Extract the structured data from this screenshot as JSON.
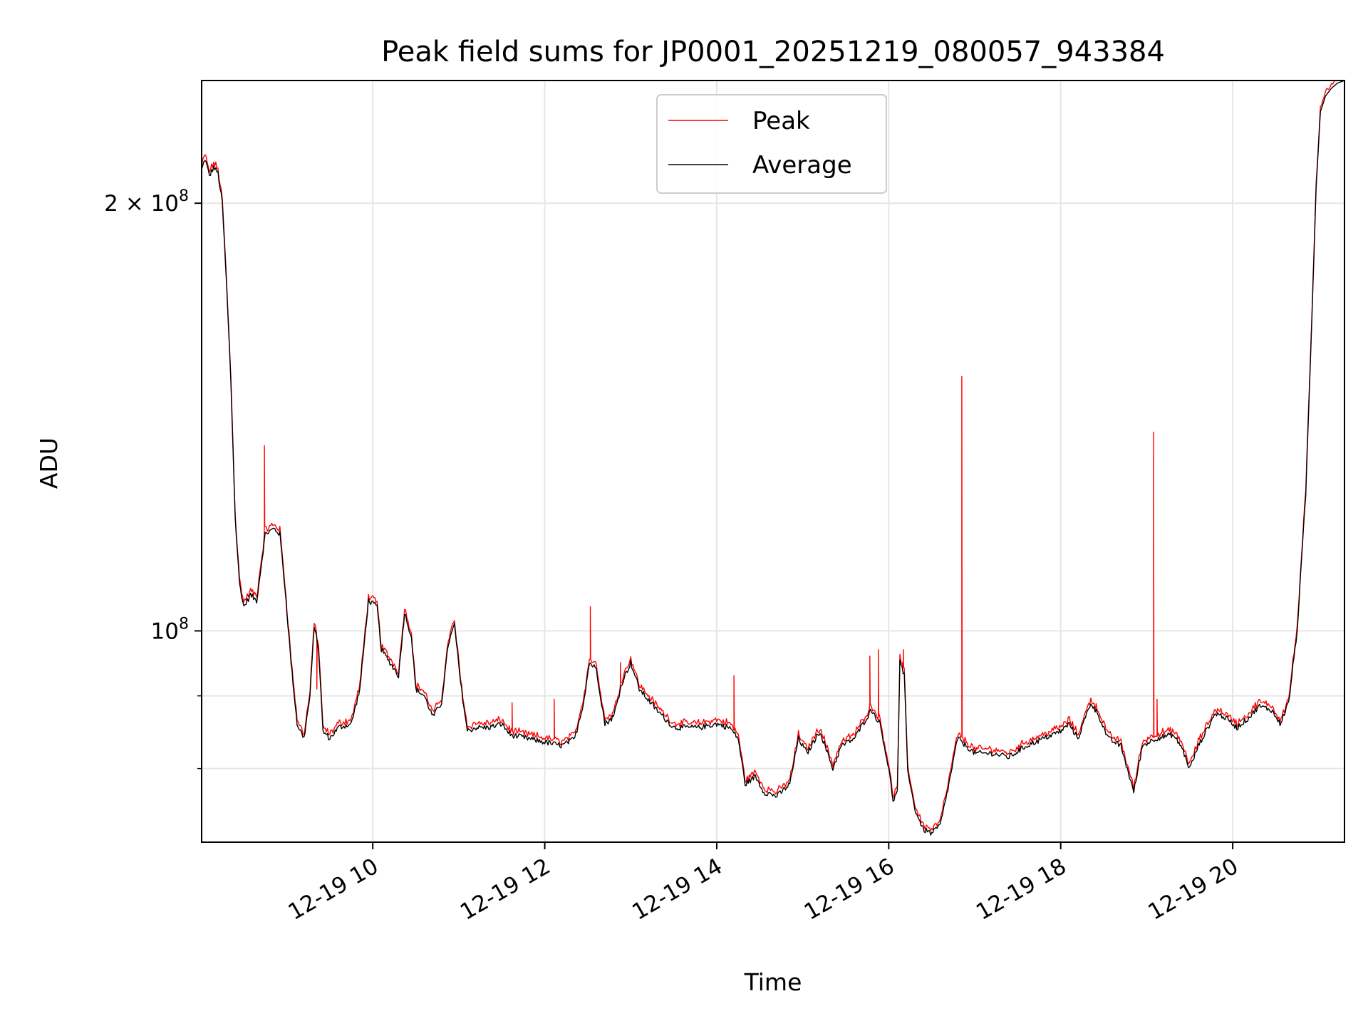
{
  "chart_data": {
    "type": "line",
    "title": "Peak field sums for JP0001_20251219_080057_943384",
    "xlabel": "Time",
    "ylabel": "ADU",
    "x_axis": {
      "type": "time",
      "hours_range": [
        8.01,
        21.3
      ],
      "tick_hours": [
        10,
        12,
        14,
        16,
        18,
        20
      ],
      "tick_labels": [
        "12-19 10",
        "12-19 12",
        "12-19 14",
        "12-19 16",
        "12-19 18",
        "12-19 20"
      ]
    },
    "y_axis": {
      "scale": "log",
      "ylim": [
        71000000,
        244000000
      ],
      "major_ticks": [
        100000000,
        200000000
      ],
      "major_tick_labels": [
        {
          "mantissa": "",
          "exponent": "8"
        },
        {
          "mantissa": "2 × ",
          "exponent": "8"
        }
      ],
      "minor_ticks": [
        80000000,
        90000000
      ]
    },
    "grid": true,
    "legend": {
      "placement": "upper-center"
    },
    "series": [
      {
        "name": "Peak",
        "color": "#ff0000",
        "spikes": [
          {
            "hour": 8.74,
            "value": 135000000
          },
          {
            "hour": 9.35,
            "value": 91000000
          },
          {
            "hour": 11.62,
            "value": 89000000
          },
          {
            "hour": 12.11,
            "value": 89500000
          },
          {
            "hour": 12.53,
            "value": 104000000
          },
          {
            "hour": 12.88,
            "value": 95000000
          },
          {
            "hour": 14.2,
            "value": 93000000
          },
          {
            "hour": 15.78,
            "value": 96000000
          },
          {
            "hour": 15.88,
            "value": 97000000
          },
          {
            "hour": 16.17,
            "value": 97000000
          },
          {
            "hour": 16.85,
            "value": 151000000
          },
          {
            "hour": 19.08,
            "value": 138000000
          },
          {
            "hour": 19.12,
            "value": 89500000
          }
        ]
      },
      {
        "name": "Average",
        "color": "#000000",
        "points": [
          [
            8.01,
            211000000
          ],
          [
            8.05,
            215000000
          ],
          [
            8.1,
            209000000
          ],
          [
            8.15,
            212000000
          ],
          [
            8.2,
            210000000
          ],
          [
            8.25,
            200000000
          ],
          [
            8.3,
            175000000
          ],
          [
            8.35,
            150000000
          ],
          [
            8.4,
            120000000
          ],
          [
            8.45,
            108000000
          ],
          [
            8.5,
            104000000
          ],
          [
            8.58,
            106000000
          ],
          [
            8.65,
            105000000
          ],
          [
            8.75,
            117000000
          ],
          [
            8.85,
            118000000
          ],
          [
            8.92,
            117000000
          ],
          [
            8.98,
            107000000
          ],
          [
            9.05,
            95000000
          ],
          [
            9.12,
            86000000
          ],
          [
            9.2,
            84000000
          ],
          [
            9.27,
            90000000
          ],
          [
            9.32,
            101000000
          ],
          [
            9.37,
            97000000
          ],
          [
            9.42,
            85000000
          ],
          [
            9.5,
            84000000
          ],
          [
            9.6,
            85500000
          ],
          [
            9.75,
            86000000
          ],
          [
            9.85,
            91000000
          ],
          [
            9.95,
            105000000
          ],
          [
            10.05,
            104000000
          ],
          [
            10.1,
            97000000
          ],
          [
            10.2,
            95000000
          ],
          [
            10.3,
            93000000
          ],
          [
            10.37,
            103000000
          ],
          [
            10.45,
            99000000
          ],
          [
            10.5,
            91000000
          ],
          [
            10.6,
            90000000
          ],
          [
            10.7,
            87000000
          ],
          [
            10.8,
            89000000
          ],
          [
            10.88,
            98000000
          ],
          [
            10.95,
            101000000
          ],
          [
            11.02,
            92000000
          ],
          [
            11.1,
            85000000
          ],
          [
            11.2,
            85500000
          ],
          [
            11.35,
            85500000
          ],
          [
            11.5,
            86000000
          ],
          [
            11.6,
            84500000
          ],
          [
            11.8,
            84000000
          ],
          [
            12.0,
            83500000
          ],
          [
            12.2,
            83000000
          ],
          [
            12.35,
            84000000
          ],
          [
            12.45,
            89000000
          ],
          [
            12.52,
            95000000
          ],
          [
            12.6,
            94000000
          ],
          [
            12.7,
            86000000
          ],
          [
            12.8,
            87000000
          ],
          [
            12.9,
            92000000
          ],
          [
            13.0,
            95000000
          ],
          [
            13.1,
            91000000
          ],
          [
            13.3,
            88000000
          ],
          [
            13.5,
            85500000
          ],
          [
            13.8,
            85500000
          ],
          [
            14.0,
            86000000
          ],
          [
            14.15,
            85500000
          ],
          [
            14.25,
            84000000
          ],
          [
            14.33,
            78000000
          ],
          [
            14.45,
            79000000
          ],
          [
            14.55,
            77000000
          ],
          [
            14.7,
            76500000
          ],
          [
            14.85,
            78000000
          ],
          [
            14.95,
            84000000
          ],
          [
            15.05,
            82000000
          ],
          [
            15.2,
            85000000
          ],
          [
            15.35,
            80000000
          ],
          [
            15.45,
            83000000
          ],
          [
            15.6,
            84000000
          ],
          [
            15.7,
            86000000
          ],
          [
            15.8,
            88000000
          ],
          [
            15.9,
            86000000
          ],
          [
            16.0,
            80000000
          ],
          [
            16.05,
            76000000
          ],
          [
            16.1,
            77000000
          ],
          [
            16.13,
            95000000
          ],
          [
            16.18,
            93000000
          ],
          [
            16.22,
            80000000
          ],
          [
            16.3,
            75000000
          ],
          [
            16.4,
            72500000
          ],
          [
            16.5,
            72000000
          ],
          [
            16.6,
            73000000
          ],
          [
            16.7,
            78000000
          ],
          [
            16.8,
            84000000
          ],
          [
            16.9,
            83000000
          ],
          [
            17.0,
            82000000
          ],
          [
            17.2,
            82000000
          ],
          [
            17.4,
            81500000
          ],
          [
            17.6,
            83000000
          ],
          [
            17.8,
            84000000
          ],
          [
            18.0,
            85000000
          ],
          [
            18.1,
            86000000
          ],
          [
            18.2,
            84000000
          ],
          [
            18.35,
            89000000
          ],
          [
            18.45,
            87000000
          ],
          [
            18.55,
            84000000
          ],
          [
            18.7,
            83000000
          ],
          [
            18.85,
            77000000
          ],
          [
            18.95,
            83000000
          ],
          [
            19.1,
            84000000
          ],
          [
            19.3,
            84500000
          ],
          [
            19.4,
            83000000
          ],
          [
            19.5,
            80000000
          ],
          [
            19.6,
            83000000
          ],
          [
            19.8,
            87500000
          ],
          [
            19.9,
            87000000
          ],
          [
            20.05,
            85500000
          ],
          [
            20.2,
            87000000
          ],
          [
            20.3,
            88500000
          ],
          [
            20.45,
            88000000
          ],
          [
            20.55,
            86000000
          ],
          [
            20.65,
            89000000
          ],
          [
            20.75,
            100000000
          ],
          [
            20.85,
            125000000
          ],
          [
            20.92,
            165000000
          ],
          [
            20.97,
            205000000
          ],
          [
            21.02,
            232000000
          ],
          [
            21.08,
            238000000
          ],
          [
            21.15,
            241000000
          ],
          [
            21.22,
            243000000
          ],
          [
            21.3,
            244000000
          ]
        ]
      }
    ]
  }
}
